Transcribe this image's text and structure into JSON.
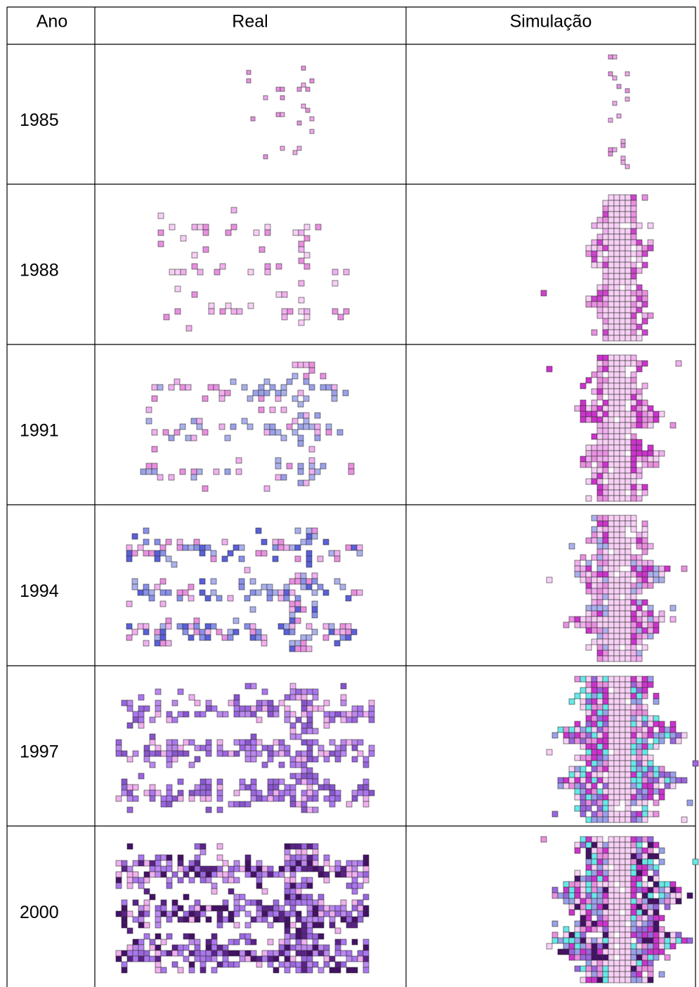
{
  "table": {
    "header": [
      "Ano",
      "Real",
      "Simulação"
    ],
    "rows": [
      [
        "1985"
      ],
      [
        "1988"
      ],
      [
        "1991"
      ],
      [
        "1994"
      ],
      [
        "1997"
      ],
      [
        "2000"
      ]
    ]
  }
}
